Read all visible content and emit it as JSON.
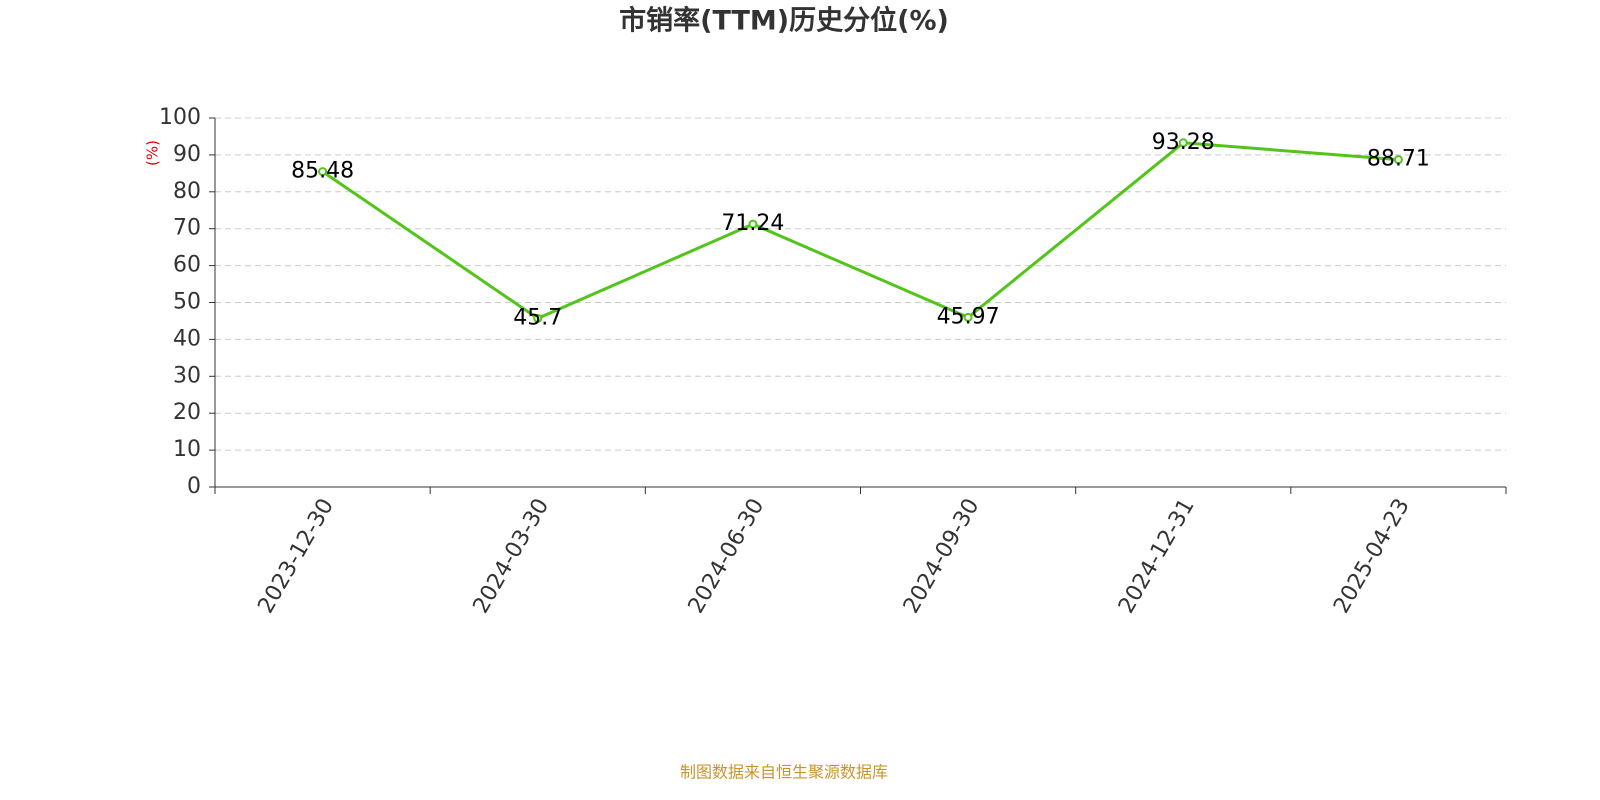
{
  "chart_data": {
    "type": "line",
    "title": "市销率(TTM)历史分位(%)",
    "y_label": "(%)",
    "categories": [
      "2023-12-30",
      "2024-03-30",
      "2024-06-30",
      "2024-09-30",
      "2024-12-31",
      "2025-04-23"
    ],
    "values": [
      85.48,
      45.7,
      71.24,
      45.97,
      93.28,
      88.71
    ],
    "color": "#52c41a",
    "ylim": [
      0,
      100
    ],
    "yticks": [
      0,
      10,
      20,
      30,
      40,
      50,
      60,
      70,
      80,
      90,
      100
    ],
    "grid": true,
    "source": "制图数据来自恒生聚源数据库"
  }
}
